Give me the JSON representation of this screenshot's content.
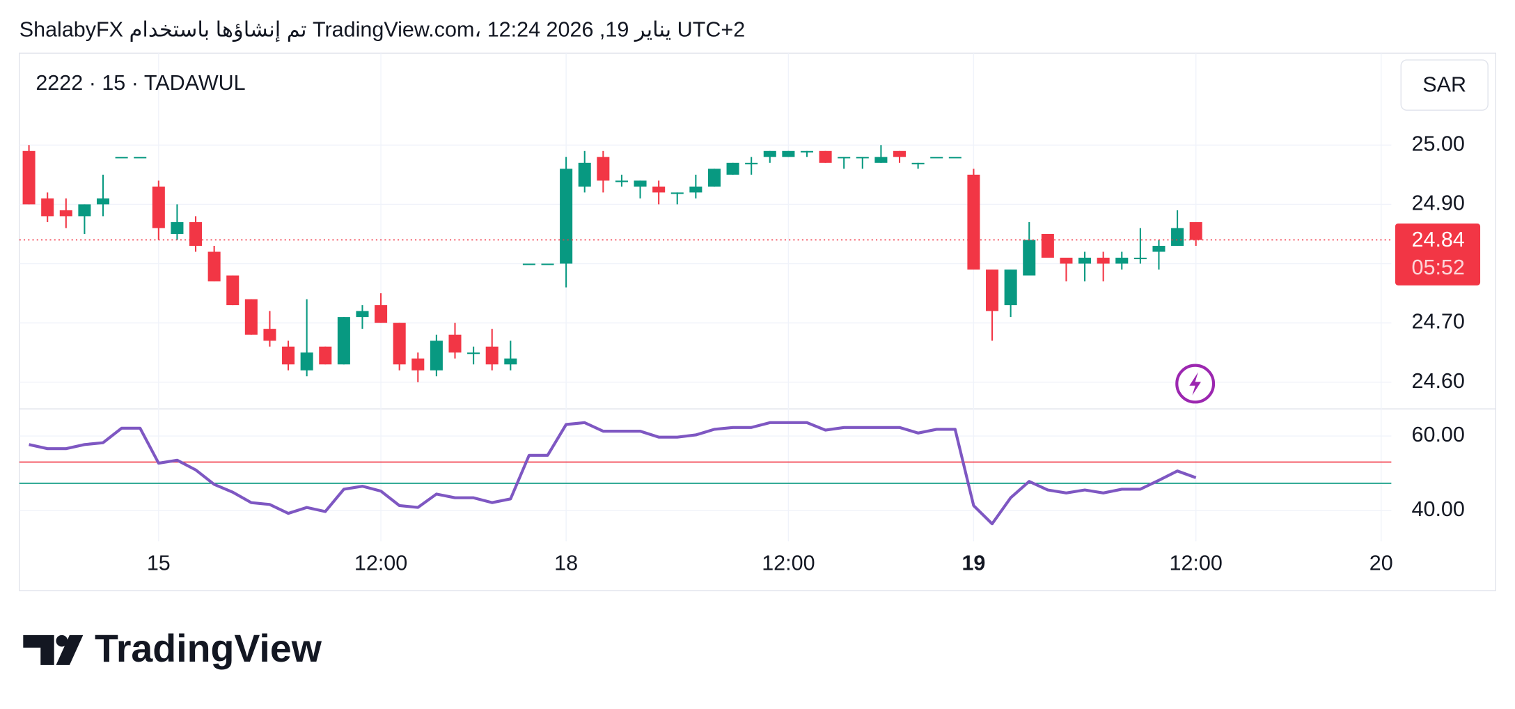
{
  "header": {
    "title": "ShalabyFX تم إنشاؤها باستخدام TradingView.com، يناير 19, 2026 12:24 UTC+2",
    "symbol": "2222 · 15 · TADAWUL",
    "currency": "SAR",
    "brand": "TradingView"
  },
  "chart_data": [
    {
      "type": "candlestick",
      "up_color": "#089981",
      "down_color": "#f23645",
      "open": [
        24.99,
        24.91,
        24.89,
        24.88,
        24.9,
        24.98,
        24.98,
        24.93,
        24.85,
        24.87,
        24.82,
        24.78,
        24.74,
        24.69,
        24.66,
        24.62,
        24.66,
        24.63,
        24.71,
        24.73,
        24.7,
        24.64,
        24.62,
        24.68,
        24.65,
        24.66,
        24.63,
        24.8,
        24.8,
        24.8,
        24.93,
        24.98,
        24.94,
        24.93,
        24.93,
        24.92,
        24.92,
        24.93,
        24.95,
        24.97,
        24.98,
        24.98,
        24.99,
        24.99,
        24.98,
        24.98,
        24.97,
        24.99,
        24.97,
        24.98,
        24.98,
        24.95,
        24.79,
        24.73,
        24.78,
        24.85,
        24.81,
        24.8,
        24.81,
        24.8,
        24.81,
        24.82,
        24.83,
        24.87
      ],
      "high": [
        25.0,
        24.92,
        24.91,
        24.9,
        24.95,
        24.98,
        24.98,
        24.94,
        24.9,
        24.88,
        24.83,
        24.78,
        24.74,
        24.72,
        24.67,
        24.74,
        24.66,
        24.71,
        24.73,
        24.75,
        24.7,
        24.65,
        24.68,
        24.7,
        24.66,
        24.69,
        24.67,
        24.8,
        24.8,
        24.98,
        24.99,
        24.99,
        24.95,
        24.94,
        24.94,
        24.92,
        24.95,
        24.96,
        24.97,
        24.98,
        24.99,
        24.99,
        24.99,
        24.99,
        24.98,
        24.98,
        25.0,
        24.99,
        24.97,
        24.98,
        24.98,
        24.96,
        24.79,
        24.79,
        24.87,
        24.85,
        24.81,
        24.82,
        24.82,
        24.82,
        24.86,
        24.84,
        24.89,
        24.87
      ],
      "low": [
        24.9,
        24.87,
        24.86,
        24.85,
        24.88,
        24.98,
        24.98,
        24.84,
        24.84,
        24.82,
        24.77,
        24.73,
        24.68,
        24.66,
        24.62,
        24.61,
        24.63,
        24.63,
        24.69,
        24.7,
        24.62,
        24.6,
        24.61,
        24.64,
        24.63,
        24.62,
        24.62,
        24.8,
        24.8,
        24.76,
        24.92,
        24.92,
        24.93,
        24.91,
        24.9,
        24.9,
        24.91,
        24.93,
        24.95,
        24.95,
        24.97,
        24.98,
        24.98,
        24.97,
        24.96,
        24.96,
        24.97,
        24.97,
        24.96,
        24.98,
        24.98,
        24.79,
        24.67,
        24.71,
        24.78,
        24.81,
        24.77,
        24.77,
        24.77,
        24.79,
        24.8,
        24.79,
        24.83,
        24.83
      ],
      "close": [
        24.9,
        24.88,
        24.88,
        24.9,
        24.91,
        24.98,
        24.98,
        24.86,
        24.87,
        24.83,
        24.77,
        24.73,
        24.68,
        24.67,
        24.63,
        24.65,
        24.63,
        24.71,
        24.72,
        24.7,
        24.63,
        24.62,
        24.67,
        24.65,
        24.65,
        24.63,
        24.64,
        24.8,
        24.8,
        24.96,
        24.97,
        24.94,
        24.94,
        24.94,
        24.92,
        24.92,
        24.93,
        24.96,
        24.97,
        24.97,
        24.99,
        24.99,
        24.99,
        24.97,
        24.98,
        24.98,
        24.98,
        24.98,
        24.97,
        24.98,
        24.98,
        24.79,
        24.72,
        24.79,
        24.84,
        24.81,
        24.8,
        24.81,
        24.8,
        24.81,
        24.81,
        24.83,
        24.86,
        24.84
      ],
      "xlim": [
        -0.52,
        73.55
      ],
      "xticks": [
        {
          "value": 7,
          "label": "15"
        },
        {
          "value": 19,
          "label": "12:00"
        },
        {
          "value": 29,
          "label": "18"
        },
        {
          "value": 41,
          "label": "12:00"
        },
        {
          "value": 51,
          "label": "19",
          "bold": true
        },
        {
          "value": 63,
          "label": "12:00"
        },
        {
          "value": 73,
          "label": "20"
        }
      ],
      "ylim": [
        24.555,
        25.155
      ],
      "yticks": [
        {
          "value": 24.6,
          "label": "24.60"
        },
        {
          "value": 24.7,
          "label": "24.70"
        },
        {
          "value": 24.8,
          "label": ""
        },
        {
          "value": 24.9,
          "label": "24.90"
        },
        {
          "value": 25,
          "label": "25.00"
        }
      ],
      "last_price": {
        "value": 24.84,
        "countdown": "05:52",
        "color": "#f23645"
      },
      "grid": true
    },
    {
      "type": "line",
      "color": "#7e57c2",
      "values": [
        57.7,
        56.6,
        56.6,
        57.7,
        58.2,
        62.1,
        62.1,
        52.7,
        53.5,
        50.9,
        47.0,
        44.9,
        42.1,
        41.6,
        39.2,
        40.8,
        39.7,
        45.7,
        46.5,
        45.2,
        41.3,
        40.8,
        44.4,
        43.4,
        43.4,
        42.1,
        43.1,
        54.8,
        54.8,
        63.1,
        63.6,
        61.3,
        61.3,
        61.3,
        59.7,
        59.7,
        60.3,
        61.8,
        62.3,
        62.3,
        63.6,
        63.6,
        63.6,
        61.6,
        62.3,
        62.3,
        62.3,
        62.3,
        60.8,
        61.8,
        61.8,
        41.3,
        36.4,
        43.4,
        47.8,
        45.5,
        44.7,
        45.5,
        44.7,
        45.7,
        45.7,
        48.1,
        50.6,
        48.8
      ],
      "ylim": [
        31.7,
        67.3
      ],
      "yticks": [
        {
          "value": 40,
          "label": "40.00"
        },
        {
          "value": 60,
          "label": "60.00"
        }
      ],
      "levels": [
        {
          "value": 53,
          "color": "#f23645"
        },
        {
          "value": 47.3,
          "color": "#089981"
        }
      ]
    }
  ]
}
